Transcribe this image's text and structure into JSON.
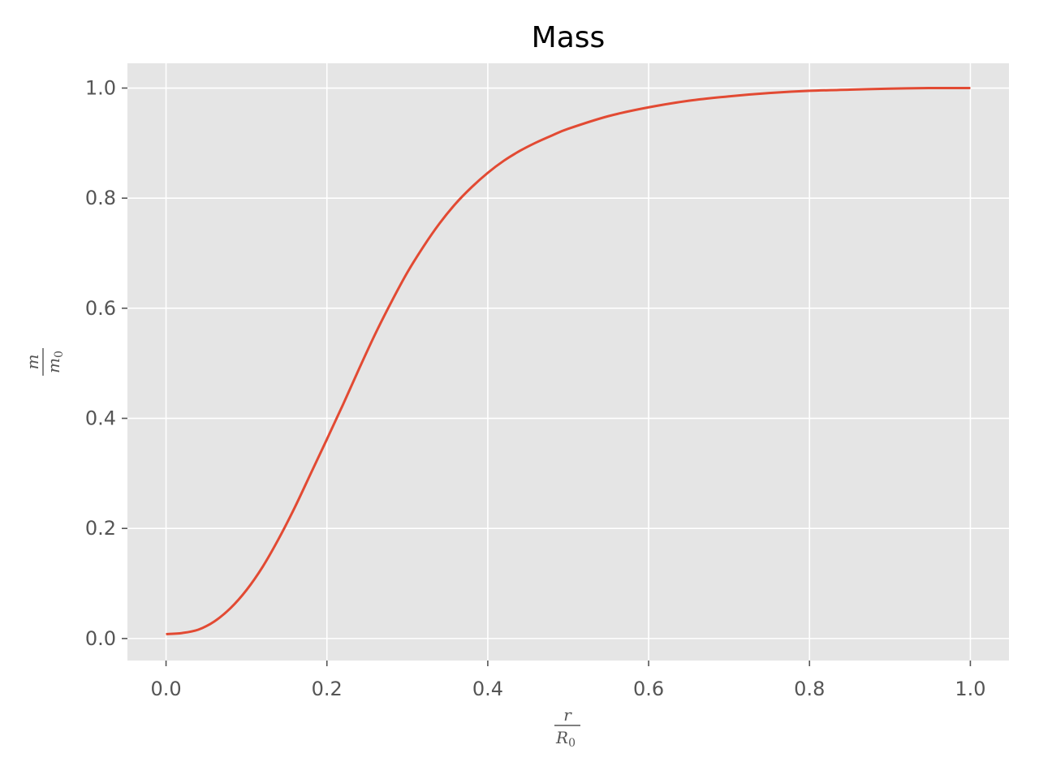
{
  "chart_data": {
    "type": "line",
    "title": "Mass",
    "xlabel": {
      "numerator": "r",
      "denominator_base": "R",
      "denominator_sub": "0"
    },
    "ylabel": {
      "numerator": "m",
      "denominator_base": "m",
      "denominator_sub": "0"
    },
    "xlim": [
      -0.048,
      1.048
    ],
    "ylim": [
      -0.04,
      1.045
    ],
    "x_ticks": [
      0.0,
      0.2,
      0.4,
      0.6,
      0.8,
      1.0
    ],
    "x_tick_labels": [
      "0.0",
      "0.2",
      "0.4",
      "0.6",
      "0.8",
      "1.0"
    ],
    "y_ticks": [
      0.0,
      0.2,
      0.4,
      0.6,
      0.8,
      1.0
    ],
    "y_tick_labels": [
      "0.0",
      "0.2",
      "0.4",
      "0.6",
      "0.8",
      "1.0"
    ],
    "grid": true,
    "background_color": "#e5e5e5",
    "line_color": "#e24a33",
    "series": [
      {
        "x": [
          0.0,
          0.02,
          0.04,
          0.06,
          0.08,
          0.1,
          0.12,
          0.14,
          0.16,
          0.18,
          0.2,
          0.22,
          0.24,
          0.26,
          0.28,
          0.3,
          0.32,
          0.34,
          0.36,
          0.38,
          0.4,
          0.42,
          0.44,
          0.46,
          0.48,
          0.5,
          0.55,
          0.6,
          0.65,
          0.7,
          0.75,
          0.8,
          0.85,
          0.9,
          0.95,
          1.0
        ],
        "y": [
          0.008,
          0.01,
          0.016,
          0.031,
          0.055,
          0.088,
          0.13,
          0.181,
          0.238,
          0.3,
          0.362,
          0.425,
          0.49,
          0.553,
          0.611,
          0.665,
          0.712,
          0.754,
          0.79,
          0.82,
          0.846,
          0.868,
          0.886,
          0.901,
          0.914,
          0.926,
          0.949,
          0.965,
          0.977,
          0.985,
          0.991,
          0.995,
          0.997,
          0.999,
          1.0,
          1.0
        ]
      }
    ]
  }
}
